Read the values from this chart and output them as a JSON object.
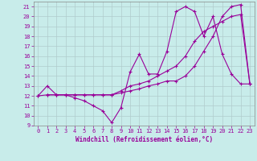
{
  "xlabel": "Windchill (Refroidissement éolien,°C)",
  "background_color": "#c8ecea",
  "grid_color": "#b0cccc",
  "line_color": "#990099",
  "xlim": [
    -0.5,
    23.5
  ],
  "ylim": [
    9,
    21.5
  ],
  "xticks": [
    0,
    1,
    2,
    3,
    4,
    5,
    6,
    7,
    8,
    9,
    10,
    11,
    12,
    13,
    14,
    15,
    16,
    17,
    18,
    19,
    20,
    21,
    22,
    23
  ],
  "yticks": [
    9,
    10,
    11,
    12,
    13,
    14,
    15,
    16,
    17,
    18,
    19,
    20,
    21
  ],
  "line1_x": [
    0,
    1,
    2,
    3,
    4,
    5,
    6,
    7,
    8,
    9,
    10,
    11,
    12,
    13,
    14,
    15,
    16,
    17,
    18,
    19,
    20,
    21,
    22,
    23
  ],
  "line1_y": [
    12,
    12.1,
    12.1,
    12.1,
    12.1,
    12.1,
    12.1,
    12.1,
    12.1,
    12.3,
    12.5,
    12.7,
    13.0,
    13.2,
    13.5,
    13.5,
    14.0,
    15.0,
    16.5,
    18.0,
    20.0,
    21.0,
    21.2,
    13.2
  ],
  "line2_x": [
    1,
    2,
    3,
    4,
    5,
    6,
    7,
    8,
    9,
    10,
    11,
    12,
    13,
    14,
    15,
    16,
    17,
    18,
    19,
    20,
    21,
    22,
    23
  ],
  "line2_y": [
    12.1,
    12.1,
    12.1,
    11.8,
    11.5,
    11.0,
    10.5,
    9.3,
    10.8,
    14.4,
    16.2,
    14.2,
    14.2,
    16.5,
    20.5,
    21.0,
    20.5,
    18.0,
    20.0,
    16.2,
    14.2,
    13.2,
    13.2
  ],
  "line3_x": [
    0,
    1,
    2,
    3,
    4,
    5,
    6,
    7,
    8,
    9,
    10,
    11,
    12,
    13,
    14,
    15,
    16,
    17,
    18,
    19,
    20,
    21,
    22,
    23
  ],
  "line3_y": [
    12,
    13.0,
    12.1,
    12.1,
    12.1,
    12.1,
    12.1,
    12.1,
    12.1,
    12.5,
    13.0,
    13.2,
    13.5,
    14.0,
    14.5,
    15.0,
    16.0,
    17.5,
    18.5,
    19.0,
    19.5,
    20.0,
    20.2,
    13.2
  ]
}
